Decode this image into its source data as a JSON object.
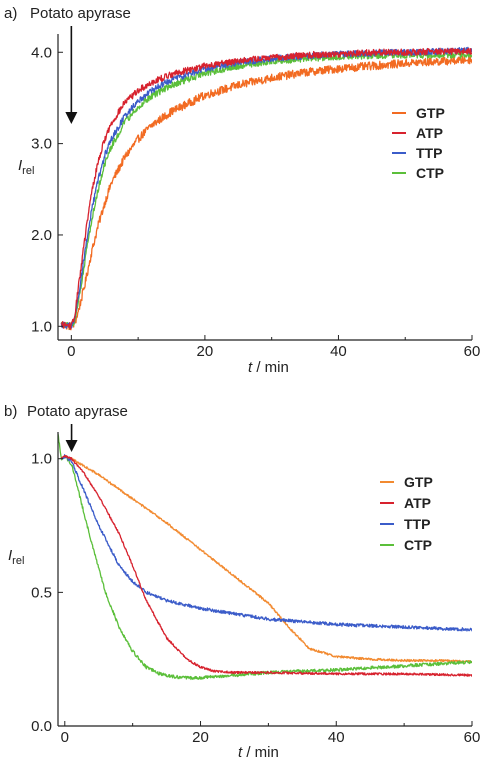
{
  "chart_data": [
    {
      "panel_label": "a)",
      "type": "line",
      "xlabel": {
        "italic": "t",
        "rest": " / min"
      },
      "ylabel": {
        "main": "I",
        "sub": "rel"
      },
      "xlim": [
        -2,
        60
      ],
      "ylim": [
        0.85,
        4.2
      ],
      "xticks": [
        0,
        20,
        40,
        60
      ],
      "xtick_labels": [
        "0",
        "20",
        "40",
        "60"
      ],
      "yticks": [
        1.0,
        2.0,
        3.0,
        4.0
      ],
      "ytick_labels": [
        "1.0",
        "2.0",
        "3.0",
        "4.0"
      ],
      "legend_position": "right",
      "annotation": {
        "text": "Potato apyrase",
        "x": 0
      },
      "series": [
        {
          "name": "GTP",
          "color": "#f26b22",
          "noise": 0.045,
          "x": [
            -1.5,
            0,
            0.5,
            1,
            2,
            3,
            4,
            5,
            6,
            8,
            10,
            12,
            15,
            20,
            25,
            30,
            35,
            40,
            45,
            50,
            55,
            60
          ],
          "y": [
            1.02,
            1.0,
            1.03,
            1.15,
            1.45,
            1.8,
            2.1,
            2.35,
            2.57,
            2.85,
            3.05,
            3.2,
            3.35,
            3.53,
            3.64,
            3.72,
            3.78,
            3.82,
            3.85,
            3.88,
            3.9,
            3.92
          ]
        },
        {
          "name": "ATP",
          "color": "#d7222e",
          "noise": 0.035,
          "x": [
            -1.5,
            0,
            0.5,
            1,
            2,
            3,
            4,
            5,
            6,
            8,
            10,
            12,
            15,
            20,
            25,
            30,
            35,
            40,
            45,
            50,
            55,
            60
          ],
          "y": [
            1.02,
            1.0,
            1.1,
            1.4,
            1.95,
            2.45,
            2.8,
            3.05,
            3.22,
            3.45,
            3.58,
            3.67,
            3.76,
            3.85,
            3.91,
            3.94,
            3.97,
            3.98,
            4.0,
            4.0,
            4.01,
            4.01
          ]
        },
        {
          "name": "TTP",
          "color": "#3b5cc9",
          "noise": 0.035,
          "x": [
            -1.5,
            0,
            0.5,
            1,
            2,
            3,
            4,
            5,
            6,
            8,
            10,
            12,
            15,
            20,
            25,
            30,
            35,
            40,
            45,
            50,
            55,
            60
          ],
          "y": [
            1.02,
            1.0,
            1.08,
            1.3,
            1.8,
            2.25,
            2.6,
            2.87,
            3.05,
            3.3,
            3.47,
            3.58,
            3.7,
            3.82,
            3.89,
            3.93,
            3.96,
            3.98,
            3.99,
            4.0,
            4.01,
            4.02
          ]
        },
        {
          "name": "CTP",
          "color": "#5bbf3a",
          "noise": 0.035,
          "x": [
            -1.5,
            0,
            0.5,
            1,
            2,
            3,
            4,
            5,
            6,
            8,
            10,
            12,
            15,
            20,
            25,
            30,
            35,
            40,
            45,
            50,
            55,
            60
          ],
          "y": [
            1.02,
            1.0,
            1.06,
            1.25,
            1.7,
            2.15,
            2.5,
            2.77,
            2.97,
            3.23,
            3.4,
            3.52,
            3.64,
            3.77,
            3.85,
            3.9,
            3.93,
            3.95,
            3.96,
            3.97,
            3.97,
            3.97
          ]
        }
      ]
    },
    {
      "panel_label": "b)",
      "type": "line",
      "xlabel": {
        "italic": "t",
        "rest": " / min"
      },
      "ylabel": {
        "main": "I",
        "sub": "rel"
      },
      "xlim": [
        -1,
        60
      ],
      "ylim": [
        0,
        1.1
      ],
      "xticks": [
        0,
        20,
        40,
        60
      ],
      "xtick_labels": [
        "0",
        "20",
        "40",
        "60"
      ],
      "yticks": [
        0.0,
        0.5,
        1.0
      ],
      "ytick_labels": [
        "0.0",
        "0.5",
        "1.0"
      ],
      "legend_position": "right",
      "annotation": {
        "text": "Potato apyrase",
        "x": 1
      },
      "series": [
        {
          "name": "GTP",
          "color": "#f28a30",
          "noise": 0.004,
          "x": [
            -0.5,
            0,
            1,
            5,
            10,
            15,
            20,
            25,
            30,
            33,
            36,
            40,
            45,
            50,
            55,
            60
          ],
          "y": [
            1.0,
            1.01,
            1.0,
            0.94,
            0.85,
            0.76,
            0.66,
            0.56,
            0.46,
            0.37,
            0.29,
            0.26,
            0.25,
            0.245,
            0.245,
            0.24
          ]
        },
        {
          "name": "ATP",
          "color": "#d7222e",
          "noise": 0.004,
          "x": [
            -0.5,
            0,
            1,
            3,
            5,
            8,
            10,
            12,
            15,
            18,
            20,
            22,
            25,
            30,
            40,
            50,
            60
          ],
          "y": [
            1.0,
            1.01,
            1.0,
            0.94,
            0.86,
            0.72,
            0.6,
            0.47,
            0.33,
            0.25,
            0.22,
            0.205,
            0.2,
            0.2,
            0.195,
            0.195,
            0.19
          ]
        },
        {
          "name": "TTP",
          "color": "#3b5cc9",
          "noise": 0.006,
          "x": [
            -0.5,
            0,
            1,
            3,
            5,
            8,
            10,
            12,
            15,
            20,
            25,
            30,
            40,
            50,
            60
          ],
          "y": [
            1.0,
            1.01,
            0.99,
            0.87,
            0.75,
            0.6,
            0.54,
            0.5,
            0.47,
            0.44,
            0.42,
            0.4,
            0.38,
            0.37,
            0.36
          ]
        },
        {
          "name": "CTP",
          "color": "#5bbf3a",
          "noise": 0.006,
          "x": [
            -1,
            -0.5,
            0,
            1,
            2,
            4,
            6,
            8,
            10,
            12,
            14,
            16,
            18,
            20,
            22,
            25,
            30,
            40,
            50,
            60
          ],
          "y": [
            1.09,
            1.0,
            1.01,
            0.98,
            0.88,
            0.68,
            0.5,
            0.37,
            0.28,
            0.22,
            0.195,
            0.185,
            0.18,
            0.18,
            0.185,
            0.19,
            0.2,
            0.21,
            0.225,
            0.24
          ]
        }
      ]
    }
  ]
}
